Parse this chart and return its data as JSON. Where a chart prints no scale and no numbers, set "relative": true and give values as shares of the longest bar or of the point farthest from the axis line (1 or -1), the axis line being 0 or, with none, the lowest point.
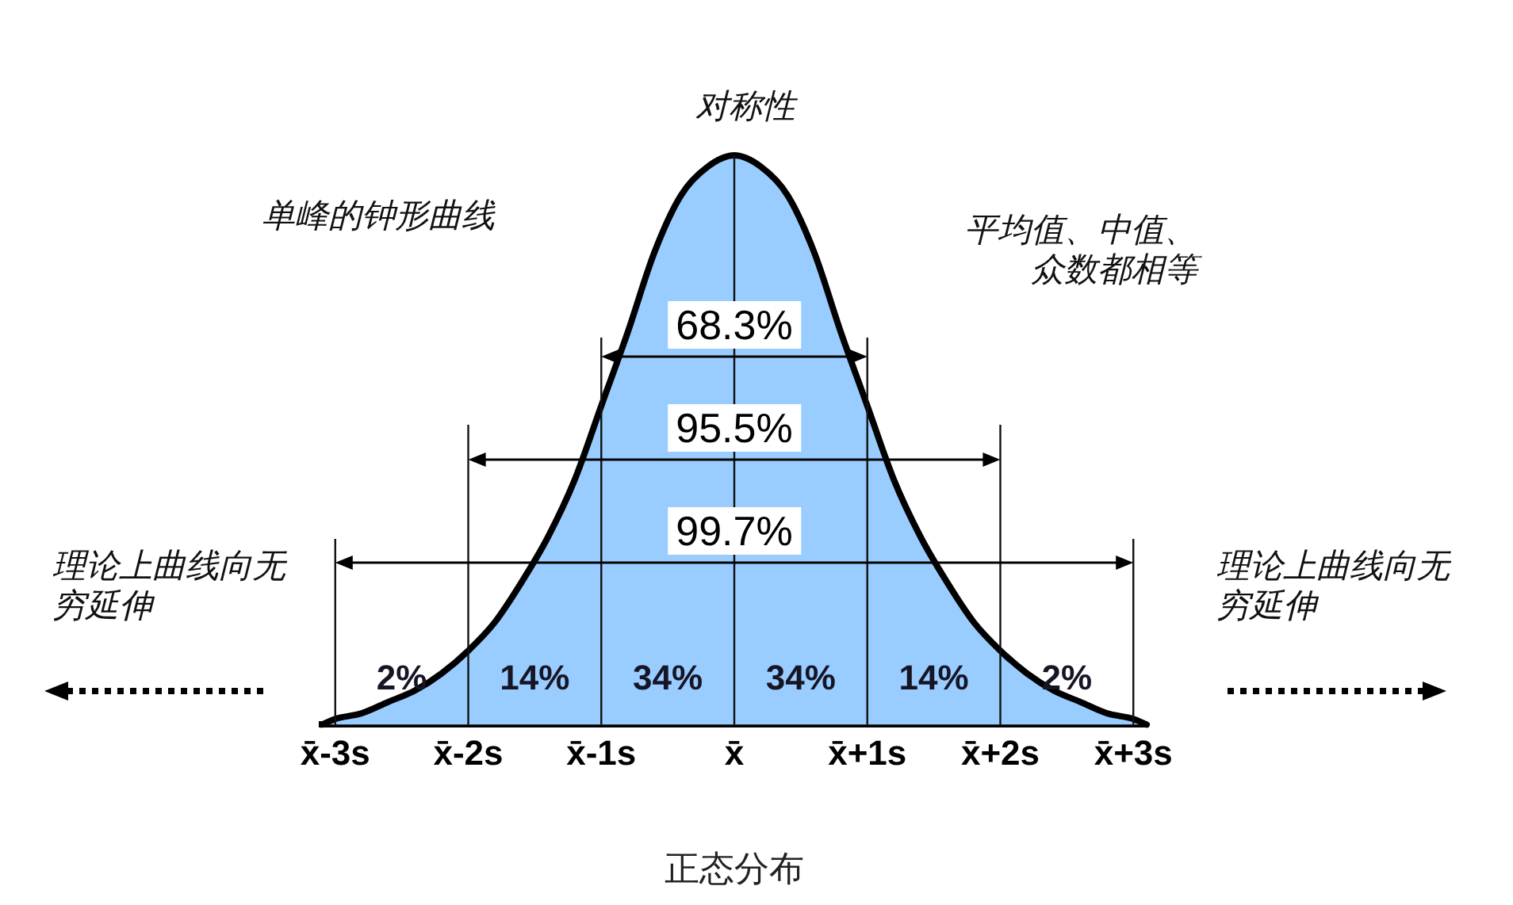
{
  "chart_data": {
    "type": "area",
    "title": "正态分布",
    "relative": true,
    "x": [
      -3.1,
      -3,
      -2.8,
      -2.6,
      -2.4,
      -2.2,
      -2,
      -1.8,
      -1.6,
      -1.4,
      -1.2,
      -1,
      -0.8,
      -0.6,
      -0.4,
      -0.2,
      0,
      0.2,
      0.4,
      0.6,
      0.8,
      1,
      1.2,
      1.4,
      1.6,
      1.8,
      2,
      2.2,
      2.4,
      2.6,
      2.8,
      3,
      3.1
    ],
    "values": [
      0,
      0.01,
      0.02,
      0.04,
      0.06,
      0.09,
      0.13,
      0.18,
      0.25,
      0.33,
      0.43,
      0.56,
      0.69,
      0.83,
      0.93,
      0.98,
      1,
      0.98,
      0.93,
      0.83,
      0.69,
      0.56,
      0.43,
      0.33,
      0.25,
      0.18,
      0.13,
      0.09,
      0.06,
      0.04,
      0.02,
      0.01,
      0
    ],
    "color": "#99ccff",
    "xlim": [
      -3.1,
      3.1
    ],
    "xticks": [
      {
        "value": -3,
        "label": "x̄-3s"
      },
      {
        "value": -2,
        "label": "x̄-2s"
      },
      {
        "value": -1,
        "label": "x̄-1s"
      },
      {
        "value": 0,
        "label": "x̄"
      },
      {
        "value": 1,
        "label": "x̄+1s"
      },
      {
        "value": 2,
        "label": "x̄+2s"
      },
      {
        "value": 3,
        "label": "x̄+3s"
      }
    ],
    "ref_lines": [
      {
        "axis": "x",
        "value": -3
      },
      {
        "axis": "x",
        "value": -2
      },
      {
        "axis": "x",
        "value": -1
      },
      {
        "axis": "x",
        "value": 0
      },
      {
        "axis": "x",
        "value": 1
      },
      {
        "axis": "x",
        "value": 2
      },
      {
        "axis": "x",
        "value": 3
      }
    ],
    "annotations": [
      "对称性",
      "单峰的钟形曲线",
      "平均值、中值、众数都相等",
      "理论上曲线向无穷延伸",
      "理论上曲线向无穷延伸",
      "68.3%",
      "95.5%",
      "99.7%",
      "2%",
      "14%",
      "34%",
      "34%",
      "14%",
      "2%"
    ]
  }
}
